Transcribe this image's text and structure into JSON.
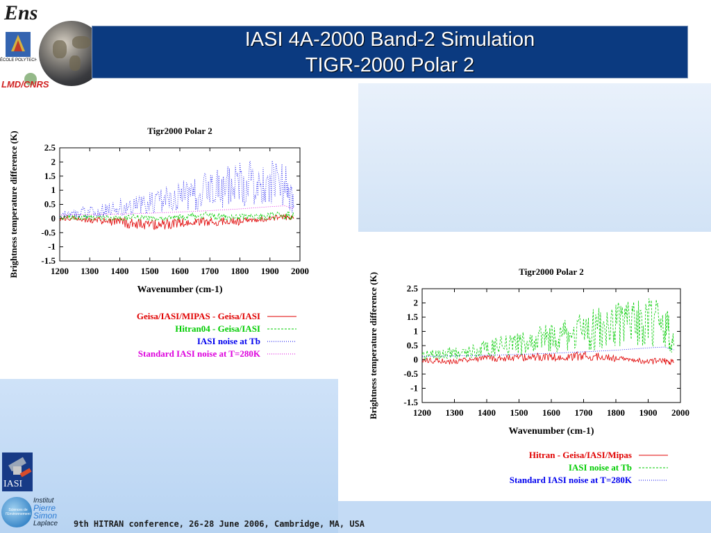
{
  "slide": {
    "title_line1": "IASI 4A-2000 Band-2 Simulation",
    "title_line2": "TIGR-2000 Polar 2",
    "footer": "9th HITRAN conference, 26-28 June 2006, Cambridge, MA, USA",
    "logos": {
      "ens": "Ens",
      "polytechnique": "ÉCOLE POLYTECHNIQUE",
      "lmd": "LMD/CNRS",
      "iasi": "IASI",
      "ipsl_circle": "Sciences de l'Environnement",
      "ipsl_line1": "Institut",
      "ipsl_line2": "Pierre",
      "ipsl_line3": "Simon",
      "ipsl_line4": "Laplace"
    },
    "colors": {
      "title_bar": "#0b3a80",
      "red": "#e00000",
      "green": "#00cc00",
      "blue": "#0000ee",
      "magenta": "#dd00dd"
    }
  },
  "chart_data": [
    {
      "type": "line",
      "title": "Tigr2000 Polar 2",
      "xlabel": "Wavenumber (cm-1)",
      "ylabel": "Brightness temperature difference (K)",
      "xlim": [
        1200,
        2000
      ],
      "ylim": [
        -1.5,
        2.5
      ],
      "xticks": [
        "1200",
        "1300",
        "1400",
        "1500",
        "1600",
        "1700",
        "1800",
        "1900",
        "2000"
      ],
      "yticks": [
        "2.5",
        "2",
        "1.5",
        "1",
        "0.5",
        "0",
        "-0.5",
        "-1",
        "-1.5"
      ],
      "legend_placement": "below",
      "series": [
        {
          "name": "Geisa/IASI/MIPAS - Geisa/IASI",
          "color": "#e00000",
          "style": "solid",
          "x": [
            1200,
            1250,
            1300,
            1350,
            1400,
            1450,
            1500,
            1550,
            1600,
            1650,
            1700,
            1750,
            1800,
            1850,
            1900,
            1950,
            1980
          ],
          "y": [
            0.02,
            0.0,
            -0.05,
            -0.1,
            -0.15,
            -0.18,
            -0.2,
            -0.2,
            -0.15,
            -0.1,
            -0.12,
            -0.1,
            -0.1,
            -0.05,
            0.0,
            0.05,
            0.0
          ]
        },
        {
          "name": "Hitran04 - Geisa/IASI",
          "color": "#00cc00",
          "style": "dashed",
          "x": [
            1200,
            1250,
            1300,
            1350,
            1400,
            1450,
            1500,
            1550,
            1600,
            1650,
            1700,
            1750,
            1800,
            1850,
            1900,
            1950,
            1980
          ],
          "y": [
            0.02,
            0.05,
            0.05,
            0.05,
            0.0,
            0.05,
            0.0,
            0.0,
            0.05,
            0.1,
            0.1,
            0.05,
            0.05,
            0.05,
            0.1,
            0.1,
            0.1
          ]
        },
        {
          "name": "IASI noise at Tb",
          "color": "#0000ee",
          "style": "dotted",
          "x": [
            1200,
            1250,
            1300,
            1350,
            1400,
            1450,
            1500,
            1550,
            1600,
            1650,
            1700,
            1750,
            1800,
            1850,
            1900,
            1950,
            1980
          ],
          "y": [
            0.15,
            0.2,
            0.25,
            0.3,
            0.4,
            0.5,
            0.55,
            0.65,
            0.8,
            0.9,
            1.0,
            1.1,
            1.2,
            1.3,
            1.35,
            1.3,
            0.5
          ]
        },
        {
          "name": "Standard IASI noise at T=280K",
          "color": "#dd00dd",
          "style": "dotted",
          "x": [
            1200,
            1300,
            1400,
            1500,
            1600,
            1700,
            1800,
            1900,
            1950,
            1980
          ],
          "y": [
            0.12,
            0.14,
            0.16,
            0.19,
            0.23,
            0.28,
            0.34,
            0.42,
            0.45,
            0.35
          ]
        }
      ]
    },
    {
      "type": "line",
      "title": "Tigr2000 Polar 2",
      "xlabel": "Wavenumber (cm-1)",
      "ylabel": "Brightness temperature difference (K)",
      "xlim": [
        1200,
        2000
      ],
      "ylim": [
        -1.5,
        2.5
      ],
      "xticks": [
        "1200",
        "1300",
        "1400",
        "1500",
        "1600",
        "1700",
        "1800",
        "1900",
        "2000"
      ],
      "yticks": [
        "2.5",
        "2",
        "1.5",
        "1",
        "0.5",
        "0",
        "-0.5",
        "-1",
        "-1.5"
      ],
      "legend_placement": "below",
      "series": [
        {
          "name": "Hitran - Geisa/IASI/Mipas",
          "color": "#e00000",
          "style": "solid",
          "x": [
            1200,
            1250,
            1300,
            1350,
            1400,
            1450,
            1500,
            1550,
            1600,
            1650,
            1700,
            1750,
            1800,
            1850,
            1900,
            1950,
            1980
          ],
          "y": [
            0.0,
            -0.05,
            -0.05,
            0.0,
            0.05,
            0.05,
            0.1,
            0.1,
            0.1,
            0.1,
            0.15,
            0.1,
            0.05,
            0.0,
            -0.05,
            -0.05,
            -0.1
          ]
        },
        {
          "name": "IASI noise at Tb",
          "color": "#00cc00",
          "style": "dashed",
          "x": [
            1200,
            1250,
            1300,
            1350,
            1400,
            1450,
            1500,
            1550,
            1600,
            1650,
            1700,
            1750,
            1800,
            1850,
            1900,
            1950,
            1980
          ],
          "y": [
            0.15,
            0.2,
            0.25,
            0.3,
            0.4,
            0.5,
            0.55,
            0.65,
            0.8,
            0.9,
            1.0,
            1.1,
            1.2,
            1.3,
            1.35,
            1.3,
            0.5
          ]
        },
        {
          "name": "Standard IASI noise at T=280K",
          "color": "#0000ee",
          "style": "dotted",
          "x": [
            1200,
            1300,
            1400,
            1500,
            1600,
            1700,
            1800,
            1900,
            1950,
            1980
          ],
          "y": [
            0.12,
            0.14,
            0.16,
            0.19,
            0.23,
            0.28,
            0.34,
            0.42,
            0.45,
            0.35
          ]
        }
      ]
    }
  ]
}
